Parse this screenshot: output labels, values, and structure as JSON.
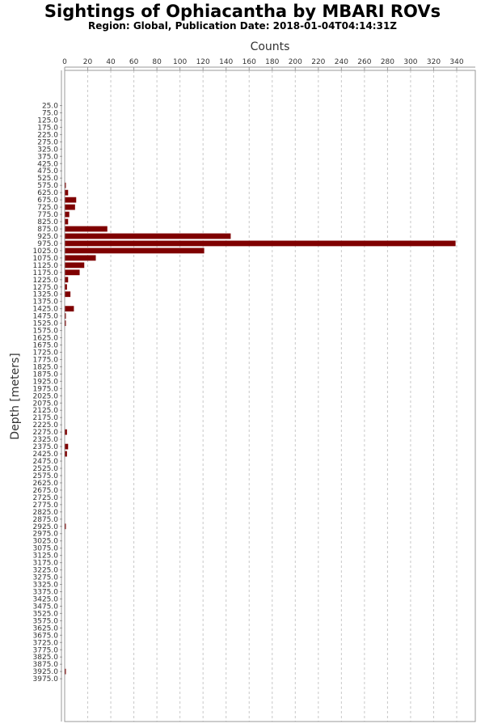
{
  "chart_data": {
    "type": "bar",
    "orientation": "horizontal",
    "title": "Sightings of Ophiacantha by MBARI ROVs",
    "subtitle": "Region: Global, Publication Date: 2018-01-04T04:14:31Z",
    "xlabel": "Counts",
    "ylabel": "Depth [meters]",
    "xlim": [
      0,
      360
    ],
    "x_ticks": [
      0,
      20,
      40,
      60,
      80,
      100,
      120,
      140,
      160,
      180,
      200,
      220,
      240,
      260,
      280,
      300,
      320,
      340
    ],
    "grid": "vertical dashed",
    "bar_color": "#7f0000",
    "categories": [
      "25.0",
      "75.0",
      "125.0",
      "175.0",
      "225.0",
      "275.0",
      "325.0",
      "375.0",
      "425.0",
      "475.0",
      "525.0",
      "575.0",
      "625.0",
      "675.0",
      "725.0",
      "775.0",
      "825.0",
      "875.0",
      "925.0",
      "975.0",
      "1025.0",
      "1075.0",
      "1125.0",
      "1175.0",
      "1225.0",
      "1275.0",
      "1325.0",
      "1375.0",
      "1425.0",
      "1475.0",
      "1525.0",
      "1575.0",
      "1625.0",
      "1675.0",
      "1725.0",
      "1775.0",
      "1825.0",
      "1875.0",
      "1925.0",
      "1975.0",
      "2025.0",
      "2075.0",
      "2125.0",
      "2175.0",
      "2225.0",
      "2275.0",
      "2325.0",
      "2375.0",
      "2425.0",
      "2475.0",
      "2525.0",
      "2575.0",
      "2625.0",
      "2675.0",
      "2725.0",
      "2775.0",
      "2825.0",
      "2875.0",
      "2925.0",
      "2975.0",
      "3025.0",
      "3075.0",
      "3125.0",
      "3175.0",
      "3225.0",
      "3275.0",
      "3325.0",
      "3375.0",
      "3425.0",
      "3475.0",
      "3525.0",
      "3575.0",
      "3625.0",
      "3675.0",
      "3725.0",
      "3775.0",
      "3825.0",
      "3875.0",
      "3925.0",
      "3975.0"
    ],
    "values": [
      0,
      0,
      0,
      0,
      0,
      0,
      0,
      0,
      0,
      0,
      0,
      1,
      3,
      10,
      9,
      4,
      3,
      37,
      144,
      339,
      121,
      27,
      17,
      13,
      3,
      2,
      5,
      0,
      8,
      1,
      1,
      0,
      0,
      0,
      0,
      0,
      0,
      0,
      0,
      0,
      0,
      0,
      0,
      0,
      0,
      2,
      0,
      3,
      2,
      0,
      0,
      0,
      0,
      0,
      0,
      0,
      0,
      0,
      1,
      0,
      0,
      0,
      0,
      0,
      0,
      0,
      0,
      0,
      0,
      0,
      0,
      0,
      0,
      0,
      0,
      0,
      0,
      0,
      1,
      0
    ]
  }
}
